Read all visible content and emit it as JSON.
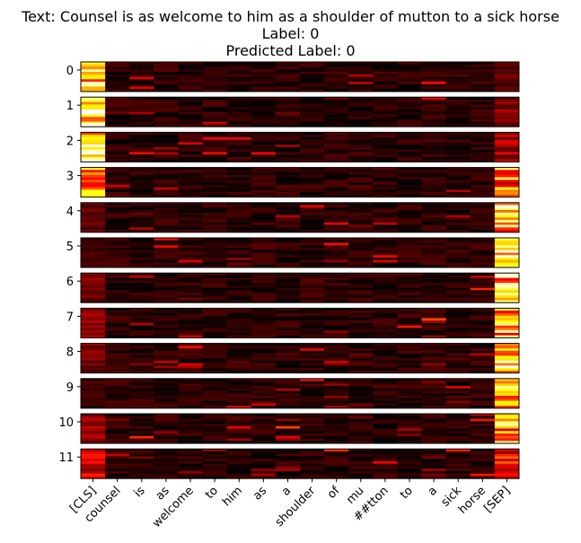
{
  "chart_data": {
    "type": "heatmap",
    "title_lines": [
      "Text: Counsel is as welcome to him as a shoulder of mutton to a sick horse",
      "Label: 0",
      "Predicted Label: 0"
    ],
    "layer_labels": [
      "0",
      "1",
      "2",
      "3",
      "4",
      "5",
      "6",
      "7",
      "8",
      "9",
      "10",
      "11"
    ],
    "tokens": [
      "[CLS]",
      "counsel",
      "is",
      "as",
      "welcome",
      "to",
      "him",
      "as",
      "a",
      "shoulder",
      "of",
      "mu",
      "##tton",
      "to",
      "a",
      "sick",
      "horse",
      "[SEP]"
    ],
    "heads_per_layer": 12,
    "colormap": "hot",
    "value_range": [
      0,
      1
    ],
    "cls_strength_by_layer": [
      0.85,
      0.9,
      0.95,
      0.75,
      0.15,
      0.12,
      0.2,
      0.25,
      0.2,
      0.1,
      0.25,
      0.35
    ],
    "sep_strength_by_layer": [
      0.2,
      0.25,
      0.3,
      0.75,
      0.95,
      0.9,
      0.85,
      0.85,
      0.9,
      0.85,
      0.85,
      0.45
    ]
  }
}
